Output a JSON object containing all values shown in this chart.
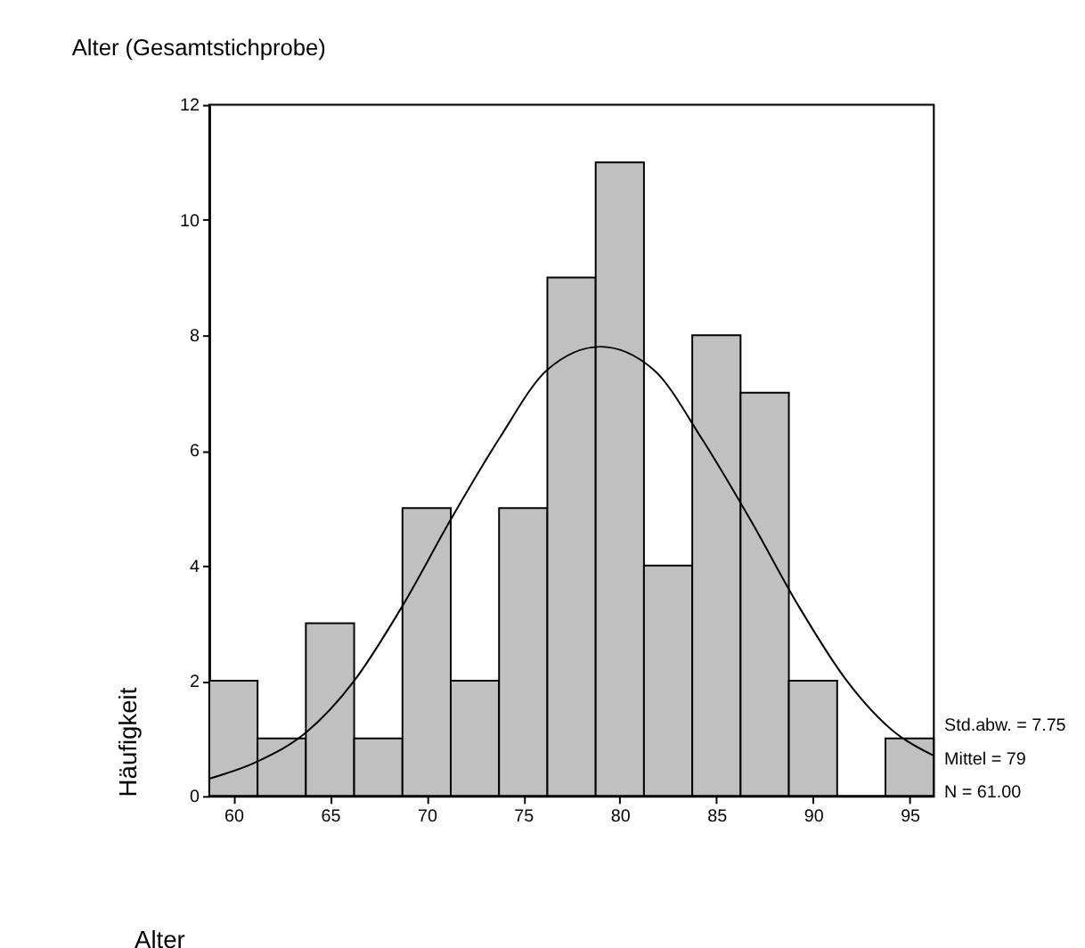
{
  "chart_data": {
    "type": "histogram",
    "title": "Alter (Gesamtstichprobe)",
    "xlabel": "Alter",
    "ylabel": "Häufigkeit",
    "bins": [
      58.75,
      61.25,
      63.75,
      66.25,
      68.75,
      71.25,
      73.75,
      76.25,
      78.75,
      81.25,
      83.75,
      86.25,
      88.75,
      91.25,
      93.75,
      96.25
    ],
    "values": [
      2,
      1,
      3,
      1,
      5,
      2,
      5,
      9,
      11,
      4,
      8,
      7,
      2,
      0,
      1
    ],
    "color": "#c0c0c0",
    "series": [
      {
        "type": "line",
        "color": "#000000",
        "x": [
          58.75,
          61.25,
          63.75,
          66.25,
          68.75,
          71.25,
          73.75,
          76.25,
          79,
          81.75,
          84.25,
          86.75,
          89.25,
          91.75,
          94.25,
          96.25
        ],
        "values": [
          0.3,
          0.6,
          1.1,
          2.0,
          3.3,
          4.8,
          6.2,
          7.4,
          7.8,
          7.4,
          6.2,
          4.8,
          3.3,
          2.0,
          1.1,
          0.7
        ]
      }
    ],
    "xlim": [
      58.75,
      96.25
    ],
    "xticks": [
      60,
      65,
      70,
      75,
      80,
      85,
      90,
      95
    ],
    "ylim": [
      0,
      12
    ],
    "yticks": [
      0,
      2,
      4,
      6,
      8,
      10,
      12
    ],
    "grid": false,
    "annotations": [
      "Std.abw. = 7.75",
      "Mittel = 79",
      "N = 61.00"
    ]
  }
}
